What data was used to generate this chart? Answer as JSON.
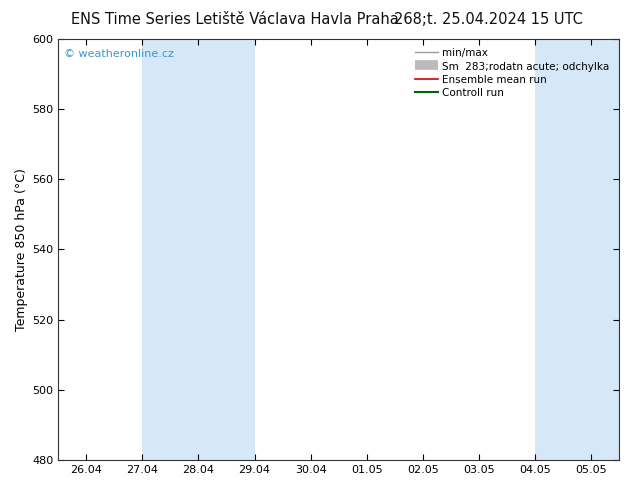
{
  "title_left": "ENS Time Series Letiště Václava Havla Praha",
  "title_right": "268;t. 25.04.2024 15 UTC",
  "ylabel": "Temperature 850 hPa (°C)",
  "watermark": "© weatheronline.cz",
  "ylim": [
    480,
    600
  ],
  "yticks": [
    480,
    500,
    520,
    540,
    560,
    580,
    600
  ],
  "x_labels": [
    "26.04",
    "27.04",
    "28.04",
    "29.04",
    "30.04",
    "01.05",
    "02.05",
    "03.05",
    "04.05",
    "05.05"
  ],
  "x_positions": [
    0,
    1,
    2,
    3,
    4,
    5,
    6,
    7,
    8,
    9
  ],
  "xlim": [
    -0.5,
    9.5
  ],
  "shaded_bands": [
    {
      "x_start": 1,
      "x_end": 3,
      "color": "#d6e8f7"
    },
    {
      "x_start": 8,
      "x_end": 9.5,
      "color": "#d6e8f7"
    }
  ],
  "background_color": "#ffffff",
  "plot_bg_color": "#ffffff",
  "title_fontsize": 10.5,
  "watermark_color": "#3399cc",
  "tick_label_fontsize": 8,
  "ylabel_fontsize": 9
}
